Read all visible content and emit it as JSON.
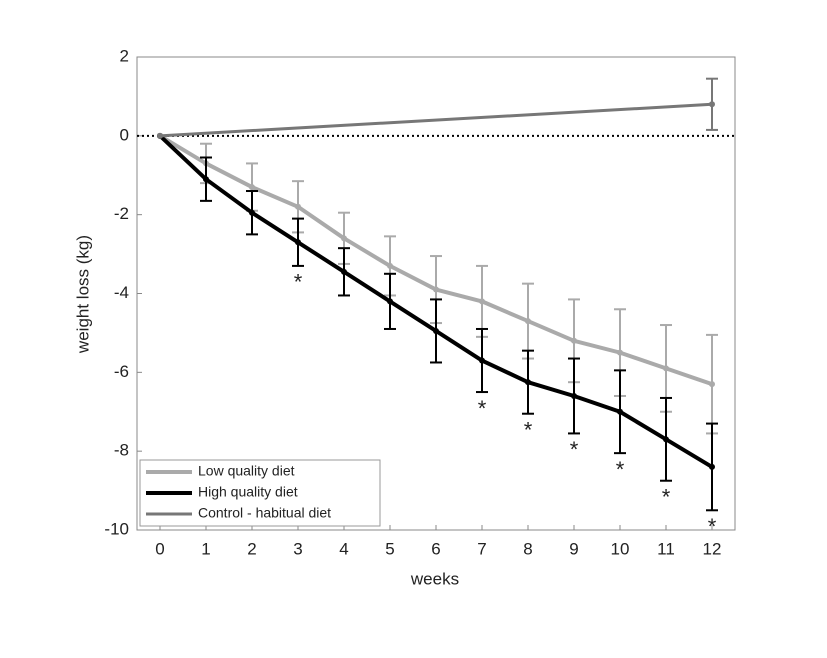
{
  "chart_data": {
    "type": "line",
    "x_label": "weeks",
    "y_label": "weight loss (kg)",
    "x": [
      0,
      1,
      2,
      3,
      4,
      5,
      6,
      7,
      8,
      9,
      10,
      11,
      12
    ],
    "series": [
      {
        "name": "Low quality diet",
        "color": "#aaaaaa",
        "values": [
          0,
          -0.7,
          -1.3,
          -1.8,
          -2.6,
          -3.3,
          -3.9,
          -4.2,
          -4.7,
          -5.2,
          -5.5,
          -5.9,
          -6.3
        ],
        "errors": [
          null,
          0.5,
          0.6,
          0.65,
          0.65,
          0.75,
          0.85,
          0.9,
          0.95,
          1.05,
          1.1,
          1.1,
          1.25
        ]
      },
      {
        "name": "High quality diet",
        "color": "#000000",
        "values": [
          0,
          -1.1,
          -1.95,
          -2.7,
          -3.45,
          -4.2,
          -4.95,
          -5.7,
          -6.25,
          -6.6,
          -7.0,
          -7.7,
          -8.4
        ],
        "errors": [
          null,
          0.55,
          0.55,
          0.6,
          0.6,
          0.7,
          0.8,
          0.8,
          0.8,
          0.95,
          1.05,
          1.05,
          1.1
        ]
      },
      {
        "name": "Control - habitual diet",
        "color": "#777777",
        "x": [
          0,
          12
        ],
        "values": [
          0,
          0.8
        ],
        "errors": [
          null,
          0.65
        ]
      }
    ],
    "annotations": [
      {
        "text": "*",
        "x": 3
      },
      {
        "text": "*",
        "x": 7
      },
      {
        "text": "*",
        "x": 8
      },
      {
        "text": "*",
        "x": 9
      },
      {
        "text": "*",
        "x": 10
      },
      {
        "text": "*",
        "x": 11
      },
      {
        "text": "*",
        "x": 12
      }
    ],
    "reference_line": 0,
    "xlim": [
      -0.5,
      12.5
    ],
    "xticks": [
      0,
      1,
      2,
      3,
      4,
      5,
      6,
      7,
      8,
      9,
      10,
      11,
      12
    ],
    "ylim": [
      -10,
      2
    ],
    "yticks": [
      -10,
      -8,
      -6,
      -4,
      -2,
      0,
      2
    ],
    "legend": "lower left"
  }
}
